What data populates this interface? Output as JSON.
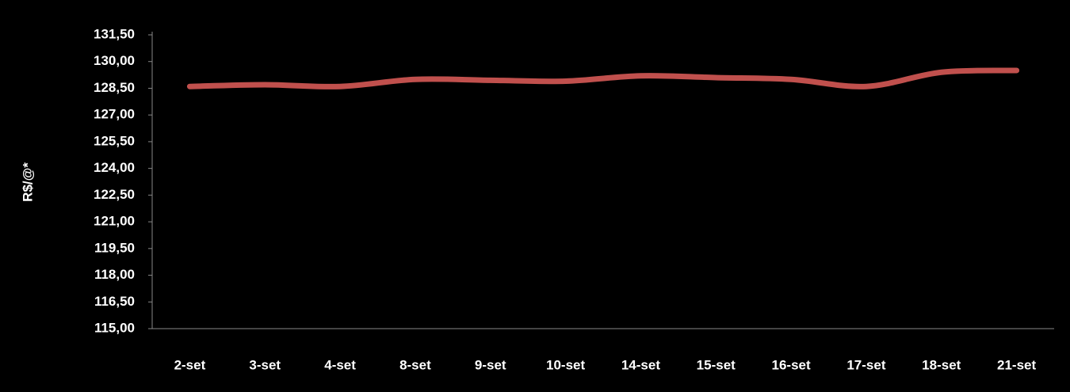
{
  "chart_data": {
    "type": "line",
    "y_label": "R$/@*",
    "categories": [
      "2-set",
      "3-set",
      "4-set",
      "8-set",
      "9-set",
      "10-set",
      "14-set",
      "15-set",
      "16-set",
      "17-set",
      "18-set",
      "21-set"
    ],
    "series": [
      {
        "color": "#c0504d",
        "values": [
          128.6,
          128.7,
          128.6,
          129.0,
          128.95,
          128.9,
          129.2,
          129.1,
          129.0,
          128.6,
          129.4,
          129.5
        ]
      }
    ],
    "ylim": [
      115,
      131.5
    ],
    "yticks": [
      {
        "value": 115,
        "label": "115,00"
      },
      {
        "value": 116.5,
        "label": "116,50"
      },
      {
        "value": 118,
        "label": "118,00"
      },
      {
        "value": 119.5,
        "label": "119,50"
      },
      {
        "value": 121,
        "label": "121,00"
      },
      {
        "value": 122.5,
        "label": "122,50"
      },
      {
        "value": 124,
        "label": "124,00"
      },
      {
        "value": 125.5,
        "label": "125,50"
      },
      {
        "value": 127,
        "label": "127,00"
      },
      {
        "value": 128.5,
        "label": "128,50"
      },
      {
        "value": 130,
        "label": "130,00"
      },
      {
        "value": 131.5,
        "label": "131,50"
      }
    ],
    "grid": false
  }
}
